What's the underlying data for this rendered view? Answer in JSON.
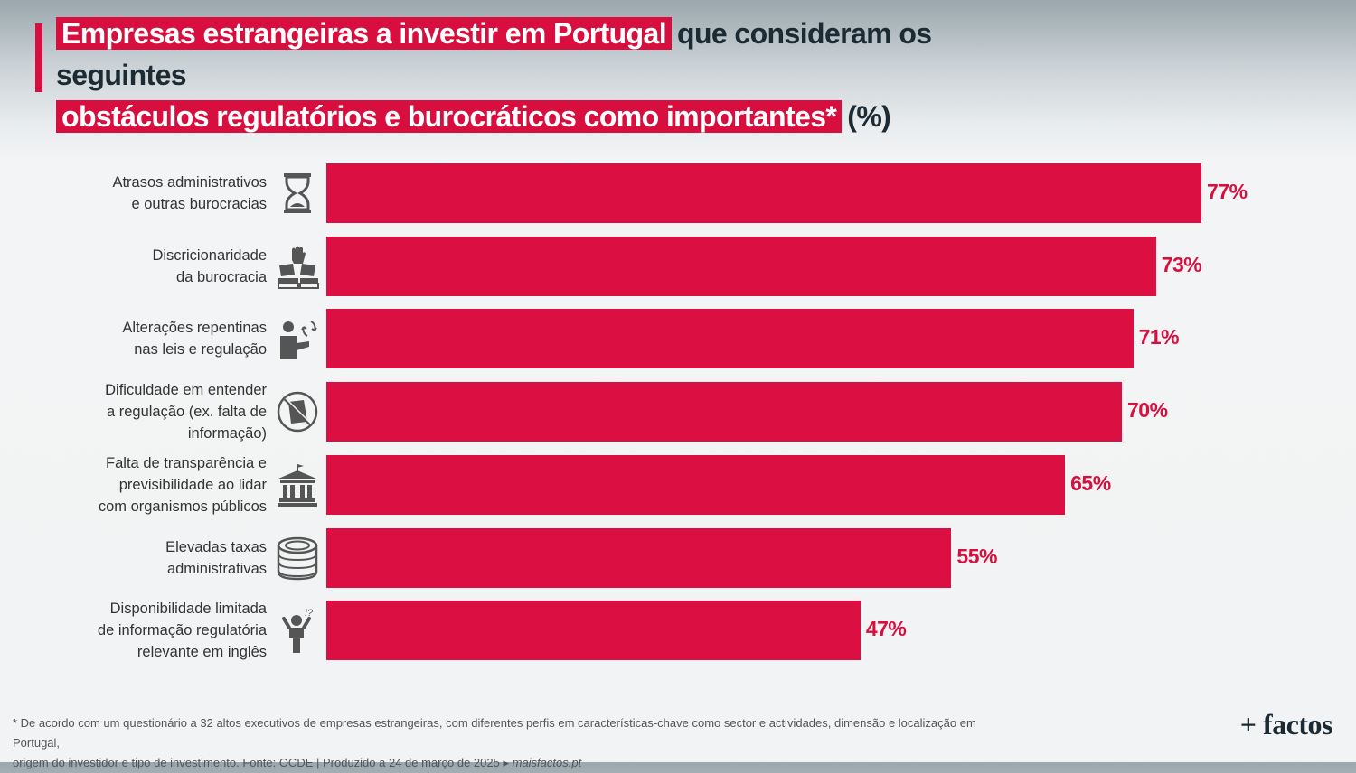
{
  "title": {
    "highlight_line1": "Empresas estrangeiras a investir em Portugal",
    "dark_line1": "que consideram os seguintes",
    "highlight_line2": "obstáculos regulatórios e burocráticos como importantes*",
    "dark_line2": "(%)"
  },
  "chart_data": {
    "type": "bar",
    "orientation": "horizontal",
    "categories": [
      "Atrasos administrativos\ne outras burocracias",
      "Discricionaridade\nda burocracia",
      "Alterações repentinas\nnas leis e regulação",
      "Dificuldade em entender\na regulação (ex. falta de\ninformação)",
      "Falta de transparência e\nprevisibilidade ao lidar\ncom organismos públicos",
      "Elevadas taxas\nadministrativas",
      "Disponibilidade limitada\nde informação regulatória\nrelevante em inglês"
    ],
    "values": [
      77,
      73,
      71,
      70,
      65,
      55,
      47
    ],
    "value_labels": [
      "77%",
      "73%",
      "71%",
      "70%",
      "65%",
      "55%",
      "47%"
    ],
    "icons": [
      "hourglass-icon",
      "books-hand-icon",
      "person-arrows-icon",
      "no-document-icon",
      "government-building-icon",
      "coins-icon",
      "confused-person-icon"
    ],
    "bar_color": "#dc0f42",
    "grid": false,
    "legend": "none"
  },
  "footnote": {
    "line1": "* De acordo com um questionário a 32 altos executivos de empresas estrangeiras, com diferentes perfis em características-chave como sector e actividades, dimensão e localização em Portugal,",
    "line2": "origem do investidor e tipo de investimento. Fonte: OCDE | Produzido a 24 de março de 2025 ▸",
    "link": "maisfactos.pt"
  },
  "logo": "+ factos"
}
